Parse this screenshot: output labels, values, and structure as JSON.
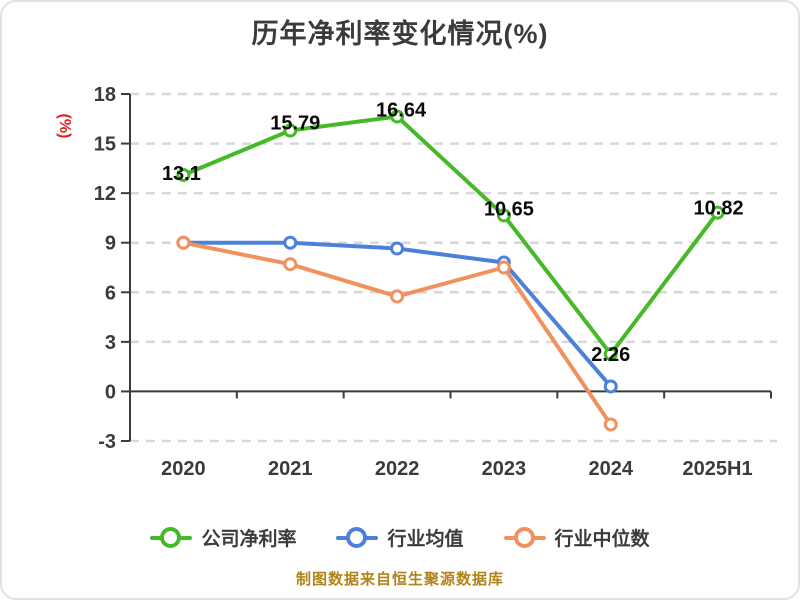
{
  "title": "历年净利率变化情况(%)",
  "y_unit_label": "(%)",
  "footer": "制图数据来自恒生聚源数据库",
  "colors": {
    "title": "#3b3b3b",
    "axis": "#3b3b3b",
    "grid": "#d8d8d8",
    "data_label": "#0a0a0a",
    "unit_label": "#dd2222",
    "footer": "#b08418",
    "company": "#46b928",
    "industry_avg": "#4d80d8",
    "industry_median": "#f1915e"
  },
  "chart_data": {
    "type": "line",
    "title": "历年净利率变化情况(%)",
    "xlabel": "",
    "ylabel": "(%)",
    "categories": [
      "2020",
      "2021",
      "2022",
      "2023",
      "2024",
      "2025H1"
    ],
    "series": [
      {
        "name": "公司净利率",
        "color": "#46b928",
        "values": [
          13.1,
          15.79,
          16.64,
          10.65,
          2.26,
          10.82
        ],
        "labels": [
          "13.1",
          "15.79",
          "16.64",
          "10.65",
          "2.26",
          "10.82"
        ]
      },
      {
        "name": "行业均值",
        "color": "#4d80d8",
        "values": [
          9.0,
          9.0,
          8.65,
          7.8,
          0.3,
          null
        ],
        "labels": null
      },
      {
        "name": "行业中位数",
        "color": "#f1915e",
        "values": [
          9.0,
          7.7,
          5.75,
          7.5,
          -2.0,
          null
        ],
        "labels": null
      }
    ],
    "ylim": [
      -3,
      18
    ],
    "yticks": [
      18,
      15,
      12,
      9,
      6,
      3,
      0,
      -3
    ],
    "grid": "horizontal dashed",
    "legend_position": "bottom",
    "source_note": "制图数据来自恒生聚源数据库"
  }
}
